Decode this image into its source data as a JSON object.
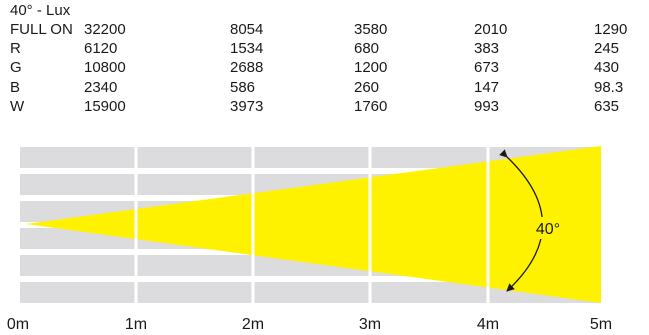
{
  "table": {
    "title": "40° - Lux",
    "rows": [
      {
        "label": "FULL ON",
        "values": [
          "32200",
          "8054",
          "3580",
          "2010",
          "1290"
        ]
      },
      {
        "label": "R",
        "values": [
          "6120",
          "1534",
          "680",
          "383",
          "245"
        ]
      },
      {
        "label": "G",
        "values": [
          "10800",
          "2688",
          "1200",
          "673",
          "430"
        ]
      },
      {
        "label": "B",
        "values": [
          "2340",
          "586",
          "260",
          "147",
          "98.3"
        ]
      },
      {
        "label": "W",
        "values": [
          "15900",
          "3973",
          "1760",
          "993",
          "635"
        ]
      }
    ]
  },
  "diagram": {
    "beam_angle_label": "40°",
    "distance_labels": [
      "0m",
      "1m",
      "2m",
      "3m",
      "4m",
      "5m"
    ],
    "colors": {
      "beam": "#fff200",
      "grid": "#dcdcde",
      "line": "#1a1a1a"
    }
  }
}
